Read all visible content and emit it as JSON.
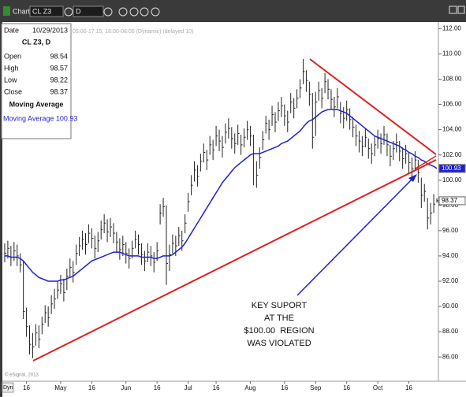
{
  "toolbar": {
    "window_title": "Chart",
    "symbol": "CL Z3",
    "interval": "D"
  },
  "chart_data": {
    "type": "ohlc",
    "session_note": "05:00-17:15, 18:00-08:00 (Dynamic) (delayed 10)",
    "watermark": "© eSignal, 2013",
    "corner_label": "Dyn",
    "info_panel": {
      "date_label": "Date",
      "date": "10/29/2013",
      "symbol": "CL Z3, D",
      "rows": [
        [
          "Open",
          "98.54"
        ],
        [
          "High",
          "98.57"
        ],
        [
          "Low",
          "98.22"
        ],
        [
          "Close",
          "98.37"
        ]
      ],
      "study": "Moving Average",
      "study_value": "Moving Average 100.93"
    },
    "annotation": [
      "KEY SUPORT",
      "AT THE",
      "$100.00  REGION",
      "WAS VIOLATED"
    ],
    "bar_color": "#222222",
    "categories": [
      null,
      null,
      null,
      null,
      null,
      null,
      null,
      "16",
      null,
      null,
      null,
      null,
      null,
      null,
      null,
      null,
      null,
      null,
      "May",
      null,
      null,
      null,
      null,
      null,
      null,
      null,
      null,
      null,
      "16",
      null,
      null,
      null,
      null,
      null,
      null,
      null,
      null,
      null,
      null,
      "Jun",
      null,
      null,
      null,
      null,
      null,
      null,
      null,
      null,
      null,
      "16",
      null,
      null,
      null,
      null,
      null,
      null,
      null,
      null,
      null,
      "Jul",
      null,
      null,
      null,
      null,
      null,
      null,
      null,
      null,
      "16",
      null,
      null,
      null,
      null,
      null,
      null,
      null,
      null,
      null,
      null,
      "Aug",
      null,
      null,
      null,
      null,
      null,
      null,
      null,
      null,
      null,
      null,
      "16",
      null,
      null,
      null,
      null,
      null,
      null,
      null,
      null,
      null,
      "Sep",
      null,
      null,
      null,
      null,
      null,
      null,
      null,
      null,
      null,
      "16",
      null,
      null,
      null,
      null,
      null,
      null,
      null,
      null,
      null,
      "Oct",
      null,
      null,
      null,
      null,
      null,
      null,
      null,
      null,
      null,
      "16",
      null,
      null,
      null,
      null,
      null,
      null,
      null,
      null,
      null
    ],
    "high": [
      95.0,
      95.2,
      94.8,
      95.1,
      94.9,
      94.2,
      93.6,
      89.9,
      88.5,
      87.9,
      88.6,
      88.5,
      89.2,
      90.1,
      90.0,
      90.9,
      91.4,
      92.0,
      92.5,
      92.2,
      93.0,
      93.8,
      93.6,
      94.9,
      95.5,
      96.0,
      95.8,
      96.5,
      96.2,
      95.6,
      95.9,
      96.8,
      97.3,
      96.9,
      97.0,
      96.6,
      95.9,
      95.4,
      95.6,
      95.1,
      94.6,
      95.2,
      96.0,
      95.7,
      95.0,
      94.4,
      95.0,
      94.8,
      94.3,
      95.1,
      98.1,
      98.6,
      98.0,
      94.9,
      95.7,
      95.6,
      96.3,
      96.0,
      97.3,
      99.0,
      100.4,
      101.5,
      101.2,
      102.1,
      102.9,
      102.4,
      103.5,
      103.2,
      104.3,
      104.0,
      103.5,
      104.5,
      104.9,
      104.2,
      103.7,
      104.4,
      103.6,
      104.1,
      104.7,
      104.3,
      103.6,
      101.5,
      102.6,
      103.9,
      105.1,
      104.8,
      105.9,
      105.4,
      106.2,
      106.6,
      106.0,
      105.5,
      106.9,
      106.5,
      107.2,
      108.0,
      109.6,
      108.7,
      107.8,
      106.9,
      107.0,
      107.8,
      107.3,
      108.5,
      108.0,
      107.2,
      106.6,
      107.3,
      106.2,
      105.8,
      106.3,
      105.7,
      105.0,
      104.4,
      103.9,
      103.5,
      104.1,
      103.3,
      102.9,
      103.5,
      104.0,
      103.7,
      104.3,
      103.7,
      102.8,
      103.1,
      103.7,
      103.1,
      102.6,
      102.8,
      102.2,
      101.8,
      102.3,
      101.6,
      100.2,
      99.7,
      98.6,
      98.2,
      98.9,
      98.57
    ],
    "low": [
      93.5,
      93.8,
      93.2,
      93.6,
      93.2,
      92.7,
      89.0,
      87.6,
      86.2,
      85.9,
      86.9,
      86.7,
      87.8,
      88.7,
      88.4,
      89.4,
      89.8,
      90.6,
      91.0,
      90.4,
      91.3,
      92.3,
      91.9,
      93.3,
      94.0,
      94.5,
      94.1,
      95.0,
      94.6,
      93.8,
      94.3,
      95.3,
      95.8,
      95.1,
      95.5,
      95.0,
      94.3,
      93.7,
      94.0,
      93.4,
      93.0,
      93.8,
      94.6,
      94.1,
      93.3,
      92.8,
      93.5,
      93.2,
      92.7,
      93.6,
      96.5,
      97.1,
      91.7,
      92.8,
      94.2,
      94.0,
      94.8,
      94.4,
      95.8,
      97.5,
      98.8,
      99.9,
      99.5,
      100.7,
      101.4,
      100.8,
      102.0,
      101.6,
      102.7,
      102.3,
      101.8,
      102.9,
      103.3,
      102.5,
      102.1,
      102.8,
      102.0,
      102.6,
      103.2,
      102.7,
      99.6,
      99.4,
      100.9,
      102.4,
      103.7,
      103.2,
      104.3,
      103.8,
      104.7,
      105.0,
      104.3,
      103.8,
      105.3,
      104.9,
      105.7,
      106.5,
      107.6,
      107.0,
      105.9,
      102.5,
      103.5,
      106.3,
      105.7,
      106.9,
      106.4,
      105.6,
      105.0,
      105.7,
      104.5,
      104.1,
      104.7,
      104.0,
      103.4,
      102.7,
      102.2,
      101.9,
      102.6,
      101.7,
      101.3,
      101.9,
      102.5,
      102.1,
      102.8,
      101.9,
      101.1,
      101.6,
      102.2,
      101.5,
      100.9,
      101.3,
      100.5,
      100.2,
      100.8,
      99.8,
      97.8,
      98.3,
      96.1,
      96.5,
      97.4,
      98.22
    ],
    "close": [
      94.2,
      94.6,
      93.9,
      94.4,
      94.0,
      93.3,
      89.6,
      88.4,
      87.0,
      86.8,
      87.9,
      87.4,
      88.6,
      89.5,
      89.1,
      90.2,
      90.6,
      91.3,
      91.8,
      91.1,
      92.4,
      93.1,
      92.7,
      94.2,
      94.8,
      95.3,
      94.9,
      95.8,
      95.4,
      94.6,
      95.2,
      96.1,
      96.6,
      95.9,
      96.3,
      95.8,
      95.1,
      94.5,
      94.9,
      94.2,
      93.8,
      94.6,
      95.3,
      94.9,
      94.1,
      93.6,
      94.3,
      94.0,
      93.5,
      94.4,
      97.4,
      97.9,
      93.4,
      94.1,
      95.0,
      94.8,
      95.6,
      95.2,
      96.6,
      98.3,
      99.6,
      100.8,
      100.3,
      101.5,
      102.2,
      101.6,
      102.8,
      102.4,
      103.5,
      103.1,
      102.6,
      103.8,
      104.1,
      103.3,
      102.9,
      103.7,
      102.8,
      103.4,
      104.0,
      103.5,
      102.1,
      100.4,
      101.8,
      103.2,
      104.5,
      104.0,
      105.2,
      104.6,
      105.5,
      105.9,
      105.1,
      104.6,
      106.2,
      105.7,
      106.5,
      107.3,
      108.6,
      107.9,
      106.8,
      103.4,
      106.2,
      107.1,
      106.5,
      107.8,
      107.2,
      106.4,
      105.8,
      106.6,
      105.3,
      104.9,
      105.6,
      104.8,
      104.2,
      103.5,
      103.1,
      102.7,
      103.4,
      102.5,
      102.1,
      102.8,
      103.3,
      102.9,
      103.6,
      102.8,
      101.9,
      102.5,
      103.0,
      102.3,
      101.7,
      102.1,
      101.4,
      100.9,
      101.6,
      100.6,
      98.8,
      99.1,
      97.0,
      97.4,
      98.1,
      98.37
    ],
    "moving_average": {
      "color": "#1f1fd6",
      "values": [
        94.0,
        94.0,
        93.9,
        93.9,
        93.9,
        93.8,
        93.6,
        93.3,
        93.0,
        92.7,
        92.5,
        92.3,
        92.2,
        92.1,
        92.0,
        92.0,
        92.0,
        92.0,
        92.1,
        92.1,
        92.2,
        92.3,
        92.4,
        92.6,
        92.8,
        93.0,
        93.2,
        93.4,
        93.6,
        93.7,
        93.8,
        93.9,
        94.0,
        94.1,
        94.2,
        94.3,
        94.3,
        94.3,
        94.2,
        94.1,
        94.0,
        94.0,
        94.0,
        94.0,
        93.9,
        93.9,
        93.9,
        93.9,
        93.8,
        93.8,
        93.9,
        94.0,
        94.0,
        94.0,
        94.1,
        94.3,
        94.5,
        94.7,
        95.0,
        95.4,
        95.8,
        96.2,
        96.6,
        97.0,
        97.4,
        97.8,
        98.2,
        98.6,
        99.0,
        99.4,
        99.8,
        100.1,
        100.4,
        100.7,
        101.0,
        101.2,
        101.4,
        101.6,
        101.8,
        102.0,
        102.1,
        102.1,
        102.1,
        102.2,
        102.3,
        102.4,
        102.5,
        102.6,
        102.7,
        102.9,
        103.0,
        103.1,
        103.3,
        103.5,
        103.7,
        103.9,
        104.2,
        104.5,
        104.7,
        104.8,
        105.0,
        105.2,
        105.4,
        105.5,
        105.6,
        105.6,
        105.6,
        105.6,
        105.5,
        105.4,
        105.3,
        105.1,
        104.9,
        104.7,
        104.5,
        104.3,
        104.1,
        103.9,
        103.7,
        103.5,
        103.4,
        103.3,
        103.2,
        103.1,
        103.0,
        102.9,
        102.8,
        102.7,
        102.5,
        102.4,
        102.2,
        102.1,
        101.9,
        101.8,
        101.6,
        101.5,
        101.3,
        101.2,
        101.1,
        100.93
      ]
    },
    "price_markers": [
      {
        "value": 100.93,
        "label": "100.93",
        "color": "#1f1fd6",
        "text_color": "#ffffff"
      },
      {
        "value": 98.37,
        "label": "98.37",
        "color": "#ffffff",
        "text_color": "#000000"
      }
    ],
    "ylim": [
      84.2,
      112.4
    ],
    "yticks": [
      {
        "value": 86,
        "label": "86.00"
      },
      {
        "value": 88,
        "label": "88.00"
      },
      {
        "value": 90,
        "label": "90.00"
      },
      {
        "value": 92,
        "label": "92.00"
      },
      {
        "value": 94,
        "label": "94.00"
      },
      {
        "value": 96,
        "label": "96.00"
      },
      {
        "value": 98,
        "label": "98.00"
      },
      {
        "value": 100,
        "label": "100.00"
      },
      {
        "value": 102,
        "label": "102.00"
      },
      {
        "value": 104,
        "label": "104.00"
      },
      {
        "value": 106,
        "label": "106.00"
      },
      {
        "value": 108,
        "label": "108.00"
      },
      {
        "value": 110,
        "label": "110.00"
      },
      {
        "value": 112,
        "label": "112.00"
      }
    ]
  }
}
